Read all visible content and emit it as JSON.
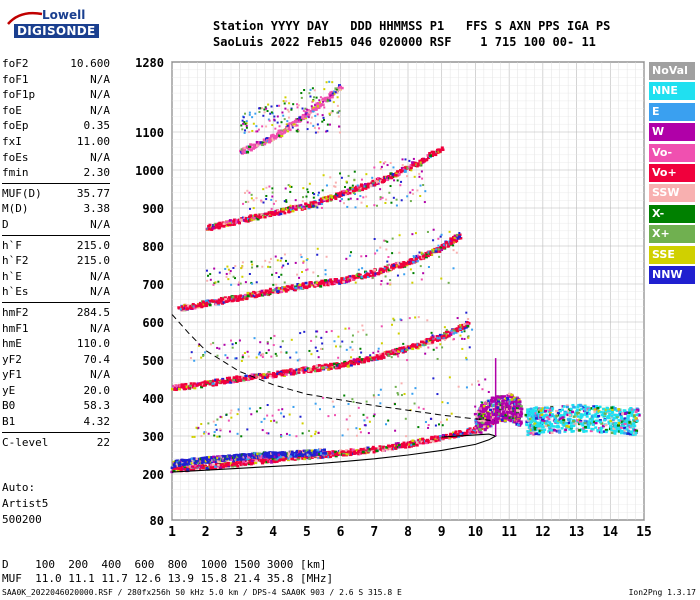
{
  "logo": {
    "line1": "Lowell",
    "line2": "DIGISONDE"
  },
  "header": {
    "line1": "Station YYYY DAY   DDD HHMMSS P1   FFS S AXN PPS IGA PS",
    "line2": "SaoLuis 2022 Feb15 046 020000 RSF    1 715 100 00- 11"
  },
  "params": {
    "group1": [
      {
        "label": "foF2",
        "value": "10.600"
      },
      {
        "label": "foF1",
        "value": "N/A"
      },
      {
        "label": "foF1p",
        "value": "N/A"
      },
      {
        "label": "foE",
        "value": "N/A"
      },
      {
        "label": "foEp",
        "value": "0.35"
      },
      {
        "label": "fxI",
        "value": "11.00"
      },
      {
        "label": "foEs",
        "value": "N/A"
      },
      {
        "label": "fmin",
        "value": "2.30"
      }
    ],
    "group2": [
      {
        "label": "MUF(D)",
        "value": "35.77"
      },
      {
        "label": "M(D)",
        "value": "3.38"
      },
      {
        "label": "D",
        "value": "N/A"
      }
    ],
    "group3": [
      {
        "label": "h`F",
        "value": "215.0"
      },
      {
        "label": "h`F2",
        "value": "215.0"
      },
      {
        "label": "h`E",
        "value": "N/A"
      },
      {
        "label": "h`Es",
        "value": "N/A"
      }
    ],
    "group4": [
      {
        "label": "hmF2",
        "value": "284.5"
      },
      {
        "label": "hmF1",
        "value": "N/A"
      },
      {
        "label": "hmE",
        "value": "110.0"
      },
      {
        "label": "yF2",
        "value": "70.4"
      },
      {
        "label": "yF1",
        "value": "N/A"
      },
      {
        "label": "yE",
        "value": "20.0"
      },
      {
        "label": "B0",
        "value": "58.3"
      },
      {
        "label": "B1",
        "value": "4.32"
      }
    ],
    "group5": [
      {
        "label": "C-level",
        "value": "22"
      }
    ]
  },
  "auto": {
    "line1": "Auto:",
    "line2": "Artist5",
    "line3": "500200"
  },
  "bottom": {
    "line1": "D    100  200  400  600  800  1000 1500 3000 [km]",
    "line2": "MUF  11.0 11.1 11.7 12.6 13.9 15.8 21.4 35.8 [MHz]"
  },
  "footer": {
    "left": "SAA0K_2022046020000.RSF / 280fx256h 50 kHz 5.0 km / DPS-4 SAA0K 903 / 2.6 S 315.8 E",
    "right": "Ion2Png 1.3.17"
  },
  "legend": [
    {
      "label": "NoVal",
      "color": "#a0a0a0"
    },
    {
      "label": "NNE",
      "color": "#20e0f0"
    },
    {
      "label": "E",
      "color": "#3aa0f0"
    },
    {
      "label": "W",
      "color": "#b000a8"
    },
    {
      "label": "Vo-",
      "color": "#f050b0"
    },
    {
      "label": "Vo+",
      "color": "#f0003c"
    },
    {
      "label": "SSW",
      "color": "#f8b0b0"
    },
    {
      "label": "X-",
      "color": "#008000"
    },
    {
      "label": "X+",
      "color": "#70b050"
    },
    {
      "label": "SSE",
      "color": "#d0d000"
    },
    {
      "label": "NNW",
      "color": "#2020d0"
    }
  ],
  "chart_data": {
    "type": "scatter",
    "xlim": [
      1,
      15
    ],
    "ylim": [
      80,
      1280
    ],
    "xticks": [
      1,
      2,
      3,
      4,
      5,
      6,
      7,
      8,
      9,
      10,
      11,
      12,
      13,
      14,
      15
    ],
    "yticks": [
      80,
      200,
      300,
      400,
      500,
      600,
      700,
      800,
      900,
      1000,
      1100,
      1280
    ],
    "grid": true,
    "traces": [
      {
        "name": "F2 o-trace echo",
        "color": "#f0003c",
        "x": [
          1.0,
          2.0,
          3.0,
          4.0,
          5.0,
          6.0,
          7.0,
          8.0,
          9.0,
          10.0,
          10.5
        ],
        "y": [
          215,
          222,
          232,
          242,
          250,
          258,
          268,
          282,
          300,
          320,
          340
        ]
      },
      {
        "name": "F2 x-trace echo",
        "color": "#2020d0",
        "x": [
          1.0,
          1.5,
          2.0,
          2.5,
          3.0,
          3.5,
          4.0,
          4.5,
          5.0,
          5.5
        ],
        "y": [
          230,
          236,
          240,
          244,
          248,
          252,
          254,
          256,
          258,
          262
        ]
      },
      {
        "name": "2nd hop",
        "color": "#f0003c",
        "x": [
          1.0,
          2.0,
          3.0,
          4.0,
          5.0,
          6.0,
          7.0,
          8.0,
          9.0,
          9.8
        ],
        "y": [
          430,
          440,
          455,
          465,
          478,
          490,
          510,
          535,
          565,
          600
        ]
      },
      {
        "name": "3rd hop",
        "color": "#f0003c",
        "x": [
          1.2,
          2.0,
          3.0,
          4.0,
          5.0,
          6.0,
          7.0,
          8.0,
          9.0,
          9.5
        ],
        "y": [
          640,
          652,
          668,
          685,
          700,
          712,
          735,
          760,
          800,
          830
        ]
      },
      {
        "name": "4th hop",
        "color": "#f0003c",
        "x": [
          2.0,
          3.0,
          4.0,
          5.0,
          6.0,
          7.0,
          8.0,
          9.0
        ],
        "y": [
          850,
          870,
          890,
          910,
          940,
          970,
          1010,
          1060
        ]
      },
      {
        "name": "5th hop",
        "color": "#f050b0",
        "x": [
          3.0,
          4.0,
          5.0,
          6.0
        ],
        "y": [
          1050,
          1090,
          1150,
          1220
        ]
      },
      {
        "name": "spread F",
        "color": "#b000a8",
        "x": [
          10.0,
          10.5,
          11.0,
          11.3
        ],
        "y": [
          340,
          370,
          380,
          360
        ]
      },
      {
        "name": "NNE spread",
        "color": "#20e0f0",
        "x": [
          11.5,
          12.0,
          13.0,
          14.0,
          14.8
        ],
        "y": [
          340,
          345,
          350,
          345,
          340
        ]
      }
    ],
    "profile_curve": {
      "x": [
        1.0,
        2.0,
        3.0,
        4.0,
        5.0,
        6.0,
        7.0,
        8.0,
        9.0,
        10.0,
        10.4,
        10.6,
        10.4,
        10.0,
        9.0
      ],
      "y": [
        205,
        210,
        215,
        220,
        225,
        232,
        240,
        250,
        262,
        278,
        290,
        300,
        305,
        303,
        297
      ]
    },
    "dashed_curve": {
      "x": [
        1.0,
        1.5,
        2.0,
        3.0,
        4.0,
        5.0,
        6.0,
        7.0,
        8.0,
        9.0,
        10.0,
        10.6
      ],
      "y": [
        620,
        570,
        525,
        470,
        435,
        410,
        395,
        380,
        368,
        355,
        345,
        340
      ]
    }
  }
}
